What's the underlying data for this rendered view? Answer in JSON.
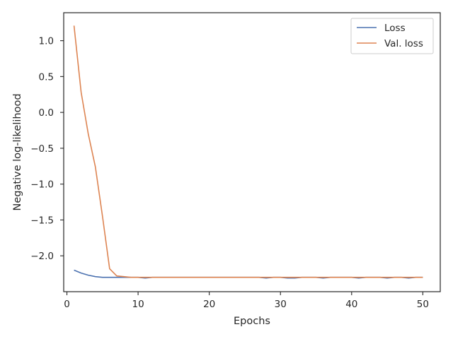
{
  "chart_data": {
    "type": "line",
    "title": "",
    "xlabel": "Epochs",
    "ylabel": "Negative log-likelihood",
    "xlim": [
      -0.45,
      52.45
    ],
    "ylim": [
      -2.5,
      1.39
    ],
    "xticks": [
      0,
      10,
      20,
      30,
      40,
      50
    ],
    "yticks": [
      1.0,
      0.5,
      0.0,
      -0.5,
      -1.0,
      -1.5,
      -2.0
    ],
    "ytick_labels": [
      "1.0",
      "0.5",
      "0.0",
      "−0.5",
      "−1.0",
      "−1.5",
      "−2.0"
    ],
    "grid": false,
    "legend_position": "top-right",
    "x": [
      1,
      2,
      3,
      4,
      5,
      6,
      7,
      8,
      9,
      10,
      11,
      12,
      13,
      14,
      15,
      16,
      17,
      18,
      19,
      20,
      21,
      22,
      23,
      24,
      25,
      26,
      27,
      28,
      29,
      30,
      31,
      32,
      33,
      34,
      35,
      36,
      37,
      38,
      39,
      40,
      41,
      42,
      43,
      44,
      45,
      46,
      47,
      48,
      49,
      50
    ],
    "series": [
      {
        "name": "Loss",
        "color": "#4c72b0",
        "values": [
          -2.2,
          -2.24,
          -2.27,
          -2.29,
          -2.3,
          -2.3,
          -2.3,
          -2.3,
          -2.3,
          -2.3,
          -2.31,
          -2.3,
          -2.3,
          -2.3,
          -2.3,
          -2.3,
          -2.3,
          -2.3,
          -2.3,
          -2.3,
          -2.3,
          -2.3,
          -2.3,
          -2.3,
          -2.3,
          -2.3,
          -2.3,
          -2.31,
          -2.3,
          -2.3,
          -2.31,
          -2.31,
          -2.3,
          -2.3,
          -2.3,
          -2.31,
          -2.3,
          -2.3,
          -2.3,
          -2.3,
          -2.31,
          -2.3,
          -2.3,
          -2.3,
          -2.31,
          -2.3,
          -2.3,
          -2.31,
          -2.3,
          -2.3
        ]
      },
      {
        "name": "Val. loss",
        "color": "#dd8452",
        "values": [
          1.21,
          0.28,
          -0.3,
          -0.76,
          -1.45,
          -2.18,
          -2.28,
          -2.29,
          -2.3,
          -2.3,
          -2.3,
          -2.3,
          -2.3,
          -2.3,
          -2.3,
          -2.3,
          -2.3,
          -2.3,
          -2.3,
          -2.3,
          -2.3,
          -2.3,
          -2.3,
          -2.3,
          -2.3,
          -2.3,
          -2.3,
          -2.3,
          -2.3,
          -2.3,
          -2.3,
          -2.3,
          -2.3,
          -2.3,
          -2.3,
          -2.3,
          -2.3,
          -2.3,
          -2.3,
          -2.3,
          -2.3,
          -2.3,
          -2.3,
          -2.3,
          -2.3,
          -2.3,
          -2.3,
          -2.3,
          -2.3,
          -2.3
        ]
      }
    ]
  }
}
